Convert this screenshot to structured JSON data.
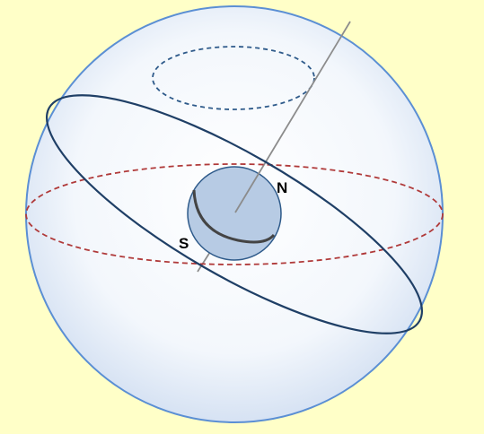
{
  "labels": {
    "north": "N",
    "south": "S"
  },
  "colors": {
    "background": "#ffffc8",
    "celestial_sphere_stroke": "#5b8fd4",
    "celestial_sphere_fill_center": "#ffffff",
    "celestial_sphere_fill_edge": "#d6e2f3",
    "earth_fill": "#b7cbe4",
    "earth_stroke": "#2e5a8a",
    "ecliptic_stroke": "#1f3f66",
    "celestial_equator_stroke": "#b03a3a",
    "circle_of_latitude_stroke": "#2e5a8a",
    "axis_stroke": "#8c8c8c",
    "terminator_stroke": "#444444",
    "label_color": "#000000"
  }
}
